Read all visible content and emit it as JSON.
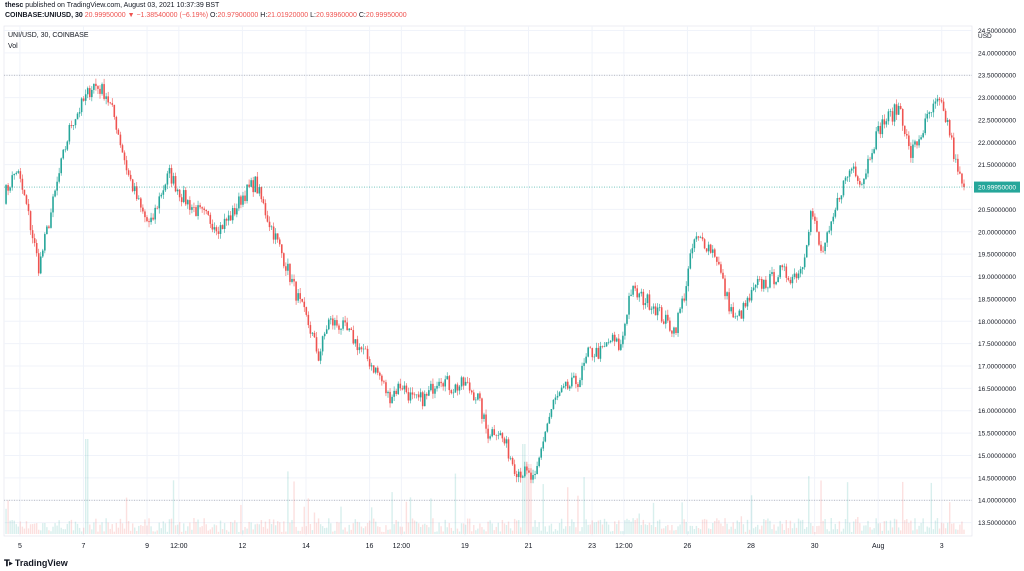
{
  "header": {
    "publisher": "thesc",
    "published_text": "published on TradingView.com, August 03, 2021 10:37:39 BST",
    "symbol": "COINBASE:UNIUSD, 30",
    "last_price": "20.99950000",
    "change": "▼ −1.38540000 (−6.19%)",
    "o_label": "O:",
    "o": "20.97900000",
    "h_label": "H:",
    "h": "21.01920000",
    "l_label": "L:",
    "l": "20.93960000",
    "c_label": "C:",
    "c": "20.99950000"
  },
  "legend": {
    "title": "UNI/USD, 30, COINBASE",
    "vol": "Vol"
  },
  "footer": {
    "brand": "TradingView"
  },
  "colors": {
    "up": "#26a69a",
    "down": "#ef5350",
    "price_line": "#26a69a",
    "grid": "#f0f3fa"
  },
  "chart_data": {
    "type": "candlestick",
    "title": "UNI/USD, 30, COINBASE",
    "currency_label": "USD",
    "last_price": 20.9995,
    "last_price_label": "20.99950000",
    "y_ticks": [
      {
        "v": 24.5,
        "label": "24.50000000"
      },
      {
        "v": 24.0,
        "label": "24.00000000"
      },
      {
        "v": 23.5,
        "label": "23.50000000"
      },
      {
        "v": 23.0,
        "label": "23.00000000"
      },
      {
        "v": 22.5,
        "label": "22.50000000"
      },
      {
        "v": 22.0,
        "label": "22.00000000"
      },
      {
        "v": 21.5,
        "label": "21.50000000"
      },
      {
        "v": 20.5,
        "label": "20.50000000"
      },
      {
        "v": 20.0,
        "label": "20.00000000"
      },
      {
        "v": 19.5,
        "label": "19.50000000"
      },
      {
        "v": 19.0,
        "label": "19.00000000"
      },
      {
        "v": 18.5,
        "label": "18.50000000"
      },
      {
        "v": 18.0,
        "label": "18.00000000"
      },
      {
        "v": 17.5,
        "label": "17.50000000"
      },
      {
        "v": 17.0,
        "label": "17.00000000"
      },
      {
        "v": 16.5,
        "label": "16.50000000"
      },
      {
        "v": 16.0,
        "label": "16.00000000"
      },
      {
        "v": 15.5,
        "label": "15.50000000"
      },
      {
        "v": 15.0,
        "label": "15.00000000"
      },
      {
        "v": 14.5,
        "label": "14.50000000"
      },
      {
        "v": 14.0,
        "label": "14.00000000"
      },
      {
        "v": 13.5,
        "label": "13.50000000"
      }
    ],
    "ylim": [
      13.2,
      24.6
    ],
    "x_ticks": [
      {
        "t": 0.5,
        "label": "5"
      },
      {
        "t": 2.5,
        "label": "7"
      },
      {
        "t": 4.5,
        "label": "9"
      },
      {
        "t": 5.5,
        "label": "12:00"
      },
      {
        "t": 7.5,
        "label": "12"
      },
      {
        "t": 9.5,
        "label": "14"
      },
      {
        "t": 11.5,
        "label": "16"
      },
      {
        "t": 12.5,
        "label": "12:00"
      },
      {
        "t": 14.5,
        "label": "19"
      },
      {
        "t": 16.5,
        "label": "21"
      },
      {
        "t": 18.5,
        "label": "23"
      },
      {
        "t": 19.5,
        "label": "12:00"
      },
      {
        "t": 21.5,
        "label": "26"
      },
      {
        "t": 23.5,
        "label": "28"
      },
      {
        "t": 25.5,
        "label": "30"
      },
      {
        "t": 27.5,
        "label": "Aug"
      },
      {
        "t": 29.5,
        "label": "3"
      }
    ],
    "x_range": [
      0,
      30.2
    ],
    "horizontal_levels": [
      23.5,
      14.0
    ],
    "price_path": [
      [
        0.0,
        20.8
      ],
      [
        0.4,
        21.4
      ],
      [
        0.7,
        20.6
      ],
      [
        1.1,
        19.2
      ],
      [
        1.5,
        20.5
      ],
      [
        1.8,
        21.5
      ],
      [
        2.1,
        22.4
      ],
      [
        2.5,
        22.9
      ],
      [
        2.8,
        23.3
      ],
      [
        3.2,
        23.1
      ],
      [
        3.5,
        22.5
      ],
      [
        3.9,
        21.3
      ],
      [
        4.3,
        20.5
      ],
      [
        4.6,
        20.1
      ],
      [
        4.9,
        20.8
      ],
      [
        5.2,
        21.3
      ],
      [
        5.6,
        20.8
      ],
      [
        6.0,
        20.5
      ],
      [
        6.4,
        20.3
      ],
      [
        6.8,
        20.1
      ],
      [
        7.2,
        20.4
      ],
      [
        7.5,
        20.8
      ],
      [
        7.9,
        21.1
      ],
      [
        8.3,
        20.3
      ],
      [
        8.7,
        19.6
      ],
      [
        9.0,
        19.0
      ],
      [
        9.3,
        18.4
      ],
      [
        9.6,
        17.9
      ],
      [
        9.9,
        17.2
      ],
      [
        10.2,
        18.0
      ],
      [
        10.6,
        17.9
      ],
      [
        11.0,
        17.6
      ],
      [
        11.4,
        17.2
      ],
      [
        11.8,
        16.8
      ],
      [
        12.1,
        16.3
      ],
      [
        12.5,
        16.6
      ],
      [
        12.9,
        16.2
      ],
      [
        13.3,
        16.3
      ],
      [
        13.7,
        16.8
      ],
      [
        14.1,
        16.5
      ],
      [
        14.5,
        16.6
      ],
      [
        14.9,
        16.3
      ],
      [
        15.2,
        15.5
      ],
      [
        15.5,
        15.6
      ],
      [
        15.8,
        15.2
      ],
      [
        16.1,
        14.7
      ],
      [
        16.4,
        14.6
      ],
      [
        16.7,
        14.4
      ],
      [
        17.0,
        15.5
      ],
      [
        17.3,
        16.2
      ],
      [
        17.7,
        16.5
      ],
      [
        18.1,
        16.7
      ],
      [
        18.4,
        17.3
      ],
      [
        18.8,
        17.3
      ],
      [
        19.1,
        17.6
      ],
      [
        19.4,
        17.4
      ],
      [
        19.7,
        18.7
      ],
      [
        20.1,
        18.5
      ],
      [
        20.4,
        18.4
      ],
      [
        20.8,
        18.0
      ],
      [
        21.1,
        17.8
      ],
      [
        21.4,
        18.6
      ],
      [
        21.7,
        19.8
      ],
      [
        22.0,
        19.8
      ],
      [
        22.4,
        19.5
      ],
      [
        22.7,
        18.6
      ],
      [
        23.0,
        18.0
      ],
      [
        23.3,
        18.3
      ],
      [
        23.7,
        18.8
      ],
      [
        24.1,
        18.9
      ],
      [
        24.4,
        19.1
      ],
      [
        24.8,
        19.0
      ],
      [
        25.1,
        19.2
      ],
      [
        25.4,
        20.5
      ],
      [
        25.7,
        19.5
      ],
      [
        26.0,
        20.0
      ],
      [
        26.3,
        20.9
      ],
      [
        26.7,
        21.5
      ],
      [
        27.0,
        21.1
      ],
      [
        27.3,
        21.9
      ],
      [
        27.6,
        22.4
      ],
      [
        27.9,
        22.6
      ],
      [
        28.2,
        22.8
      ],
      [
        28.5,
        21.7
      ],
      [
        28.8,
        22.1
      ],
      [
        29.1,
        22.6
      ],
      [
        29.4,
        22.9
      ],
      [
        29.7,
        22.4
      ],
      [
        30.0,
        21.3
      ],
      [
        30.2,
        20.99
      ]
    ]
  }
}
